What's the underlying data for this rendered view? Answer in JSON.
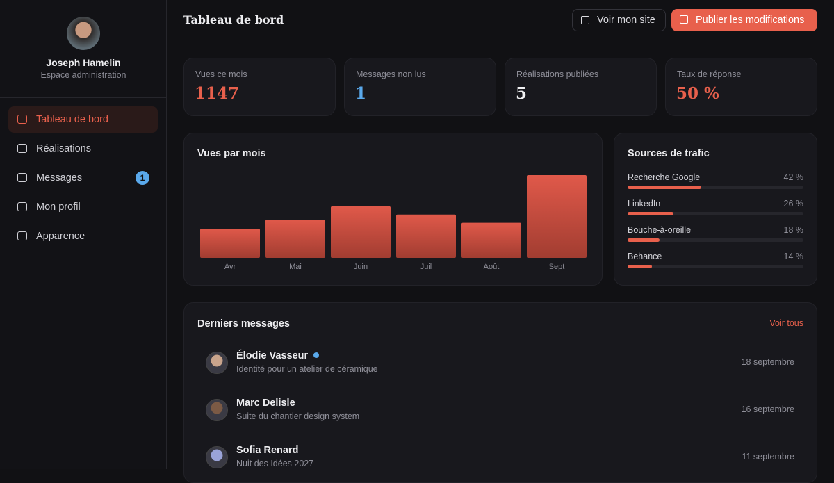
{
  "sidebar": {
    "user_name": "Joseph Hamelin",
    "user_role": "Espace administration",
    "nav": [
      {
        "label": "Tableau de bord",
        "active": true
      },
      {
        "label": "Réalisations"
      },
      {
        "label": "Messages",
        "badge": "1"
      },
      {
        "label": "Mon profil"
      },
      {
        "label": "Apparence"
      }
    ]
  },
  "header": {
    "title": "Tableau de bord",
    "view_site": "Voir mon site",
    "publish": "Publier les modifications"
  },
  "stats": [
    {
      "label": "Vues ce mois",
      "value": "1147",
      "color": "#e8604c"
    },
    {
      "label": "Messages non lus",
      "value": "1",
      "color": "#5aa9ec"
    },
    {
      "label": "Réalisations publiées",
      "value": "5",
      "color": "#f1f1f3"
    },
    {
      "label": "Taux de réponse",
      "value": "50 %",
      "color": "#e8604c"
    }
  ],
  "chart_data": {
    "type": "bar",
    "title": "Vues par mois",
    "categories": [
      "Avr",
      "Mai",
      "Juin",
      "Juil",
      "Août",
      "Sept"
    ],
    "values": [
      405,
      530,
      715,
      600,
      485,
      1147
    ],
    "color": "#e0594a"
  },
  "traffic": {
    "title": "Sources de trafic",
    "sources": [
      {
        "name": "Recherche Google",
        "value": 42,
        "value_label": "42 %"
      },
      {
        "name": "LinkedIn",
        "value": 26,
        "value_label": "26 %"
      },
      {
        "name": "Bouche-à-oreille",
        "value": 18,
        "value_label": "18 %"
      },
      {
        "name": "Behance",
        "value": 14,
        "value_label": "14 %"
      }
    ]
  },
  "messages": {
    "title": "Derniers messages",
    "see_all": "Voir tous",
    "items": [
      {
        "name": "Élodie Vasseur",
        "subject": "Identité pour un atelier de céramique",
        "date": "18 septembre",
        "unread": true,
        "avatar": "#c9a48c"
      },
      {
        "name": "Marc Delisle",
        "subject": "Suite du chantier design system",
        "date": "16 septembre",
        "avatar": "#7b5a45"
      },
      {
        "name": "Sofia Renard",
        "subject": "Nuit des Idées 2027",
        "date": "11 septembre",
        "avatar": "#9aa3d8"
      }
    ]
  }
}
